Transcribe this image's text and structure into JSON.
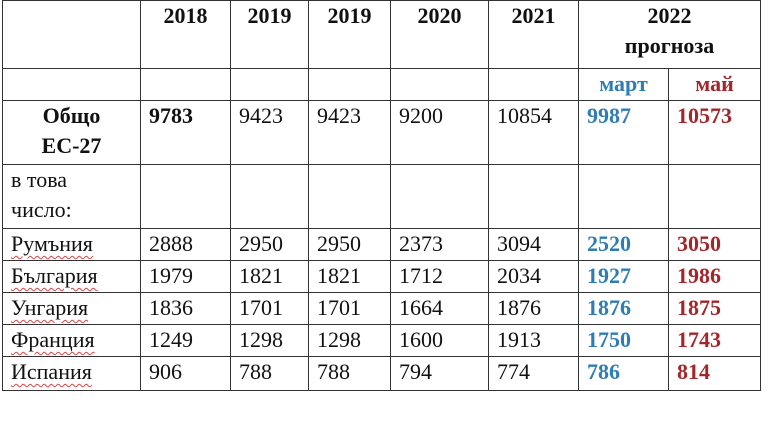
{
  "table": {
    "columns": [
      "2018",
      "2019",
      "2019",
      "2020",
      "2021",
      "2022\nпрогноза"
    ],
    "subcolumns": [
      "март",
      "май"
    ],
    "rows": [
      {
        "label": "Общо\nЕС-27",
        "values": [
          9783,
          9423,
          9423,
          9200,
          10854,
          9987,
          10573
        ]
      },
      {
        "label": "в това\nчисло:",
        "values": []
      },
      {
        "label": "Румъния",
        "values": [
          2888,
          2950,
          2950,
          2373,
          3094,
          2520,
          3050
        ]
      },
      {
        "label": "България",
        "values": [
          1979,
          1821,
          1821,
          1712,
          2034,
          1927,
          1986
        ]
      },
      {
        "label": "Унгария",
        "values": [
          1836,
          1701,
          1701,
          1664,
          1876,
          1876,
          1875
        ]
      },
      {
        "label": "Франция",
        "values": [
          1249,
          1298,
          1298,
          1600,
          1913,
          1750,
          1743
        ]
      },
      {
        "label": "Испания",
        "values": [
          906,
          788,
          788,
          794,
          774,
          786,
          814
        ]
      }
    ]
  }
}
